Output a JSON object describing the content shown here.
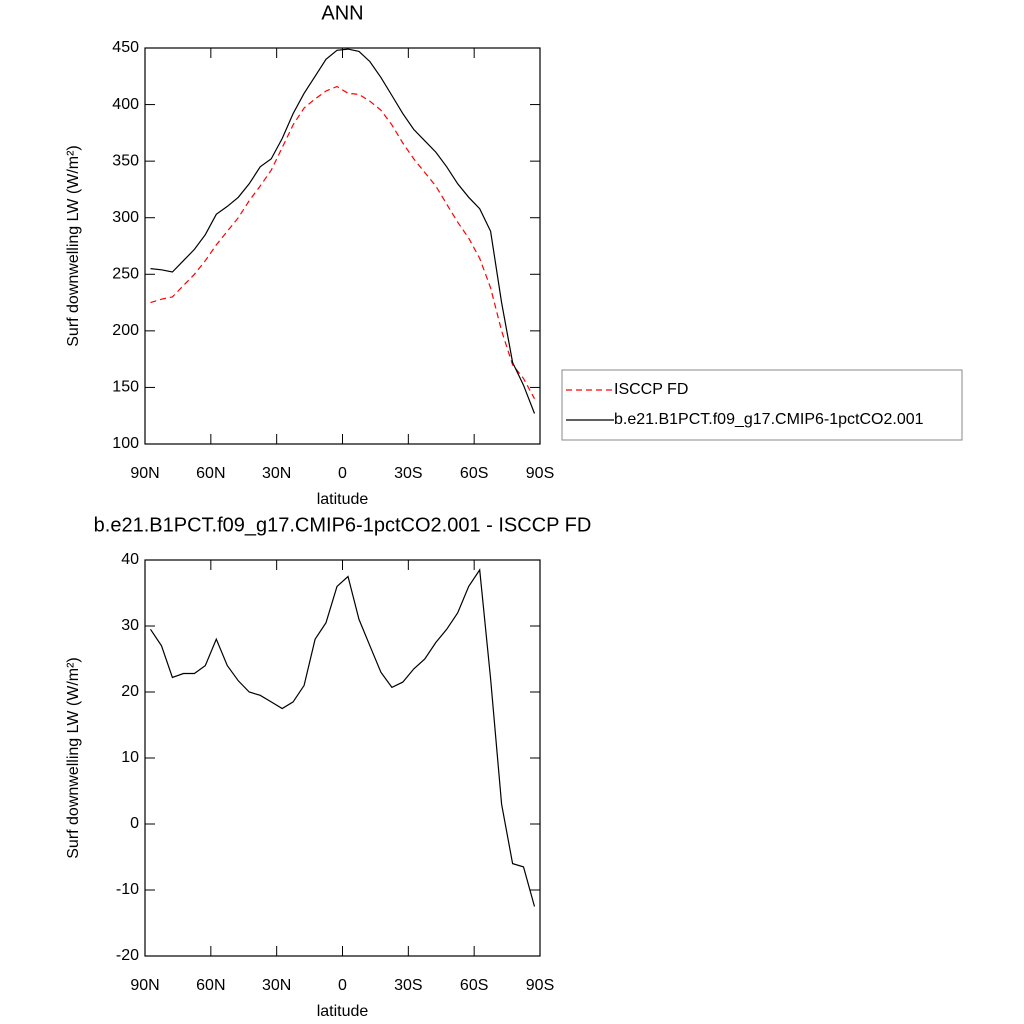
{
  "chart_data": [
    {
      "type": "line",
      "title": "ANN",
      "x_label": "latitude",
      "y_label": "Surf downwelling LW (W/m²)",
      "x": [
        87.5,
        82.5,
        77.5,
        72.5,
        67.5,
        62.5,
        57.5,
        52.5,
        47.5,
        42.5,
        37.5,
        32.5,
        27.5,
        22.5,
        17.5,
        12.5,
        7.5,
        2.5,
        -2.5,
        -7.5,
        -12.5,
        -17.5,
        -22.5,
        -27.5,
        -32.5,
        -37.5,
        -42.5,
        -47.5,
        -52.5,
        -57.5,
        -62.5,
        -67.5,
        -72.5,
        -77.5,
        -82.5,
        -87.5
      ],
      "series": [
        {
          "name": "ISCCP FD",
          "color": "#ff0000",
          "dash": true,
          "values": [
            225,
            228,
            230,
            240,
            250,
            262,
            276,
            288,
            300,
            315,
            328,
            342,
            362,
            382,
            397,
            405,
            412,
            416,
            410,
            409,
            403,
            395,
            382,
            366,
            352,
            340,
            328,
            312,
            296,
            282,
            264,
            238,
            200,
            170,
            158,
            140
          ]
        },
        {
          "name": "b.e21.B1PCT.f09_g17.CMIP6-1pctCO2.001",
          "color": "#000000",
          "dash": false,
          "values": [
            255,
            254,
            252,
            262,
            272,
            285,
            303,
            310,
            318,
            330,
            345,
            352,
            370,
            392,
            410,
            425,
            440,
            448,
            449,
            447,
            438,
            424,
            408,
            392,
            378,
            368,
            358,
            345,
            330,
            318,
            308,
            288,
            225,
            172,
            152,
            127
          ]
        }
      ],
      "xlim": [
        90,
        -90
      ],
      "xticks": [
        {
          "value": 90,
          "label": "90N"
        },
        {
          "value": 60,
          "label": "60N"
        },
        {
          "value": 30,
          "label": "30N"
        },
        0,
        {
          "value": -30,
          "label": "30S"
        },
        {
          "value": -60,
          "label": "60S"
        },
        {
          "value": -90,
          "label": "90S"
        }
      ],
      "ylim": [
        100,
        450
      ],
      "yticks": [
        100,
        150,
        200,
        250,
        300,
        350,
        400,
        450
      ],
      "legend": "right"
    },
    {
      "type": "line",
      "title": "b.e21.B1PCT.f09_g17.CMIP6-1pctCO2.001 - ISCCP FD",
      "x_label": "latitude",
      "y_label": "Surf downwelling LW (W/m²)",
      "x": [
        87.5,
        82.5,
        77.5,
        72.5,
        67.5,
        62.5,
        57.5,
        52.5,
        47.5,
        42.5,
        37.5,
        32.5,
        27.5,
        22.5,
        17.5,
        12.5,
        7.5,
        2.5,
        -2.5,
        -7.5,
        -12.5,
        -17.5,
        -22.5,
        -27.5,
        -32.5,
        -37.5,
        -42.5,
        -47.5,
        -52.5,
        -57.5,
        -62.5,
        -67.5,
        -72.5,
        -77.5,
        -82.5,
        -87.5
      ],
      "series": [
        {
          "color": "#000000",
          "dash": false,
          "values": [
            29.5,
            27,
            22.2,
            22.8,
            22.8,
            24,
            28,
            24,
            21.7,
            20,
            19.5,
            18.5,
            17.5,
            18.5,
            21,
            28,
            30.5,
            36,
            37.5,
            31,
            27,
            23,
            20.7,
            21.5,
            23.5,
            25,
            27.5,
            29.5,
            32,
            36,
            38.5,
            22,
            3,
            -6,
            -6.5,
            -12.5
          ]
        }
      ],
      "xlim": [
        90,
        -90
      ],
      "xticks": [
        {
          "value": 90,
          "label": "90N"
        },
        {
          "value": 60,
          "label": "60N"
        },
        {
          "value": 30,
          "label": "30N"
        },
        0,
        {
          "value": -30,
          "label": "30S"
        },
        {
          "value": -60,
          "label": "60S"
        },
        {
          "value": -90,
          "label": "90S"
        }
      ],
      "ylim": [
        -20,
        40
      ],
      "yticks": [
        -20,
        -10,
        0,
        10,
        20,
        30,
        40
      ]
    }
  ]
}
